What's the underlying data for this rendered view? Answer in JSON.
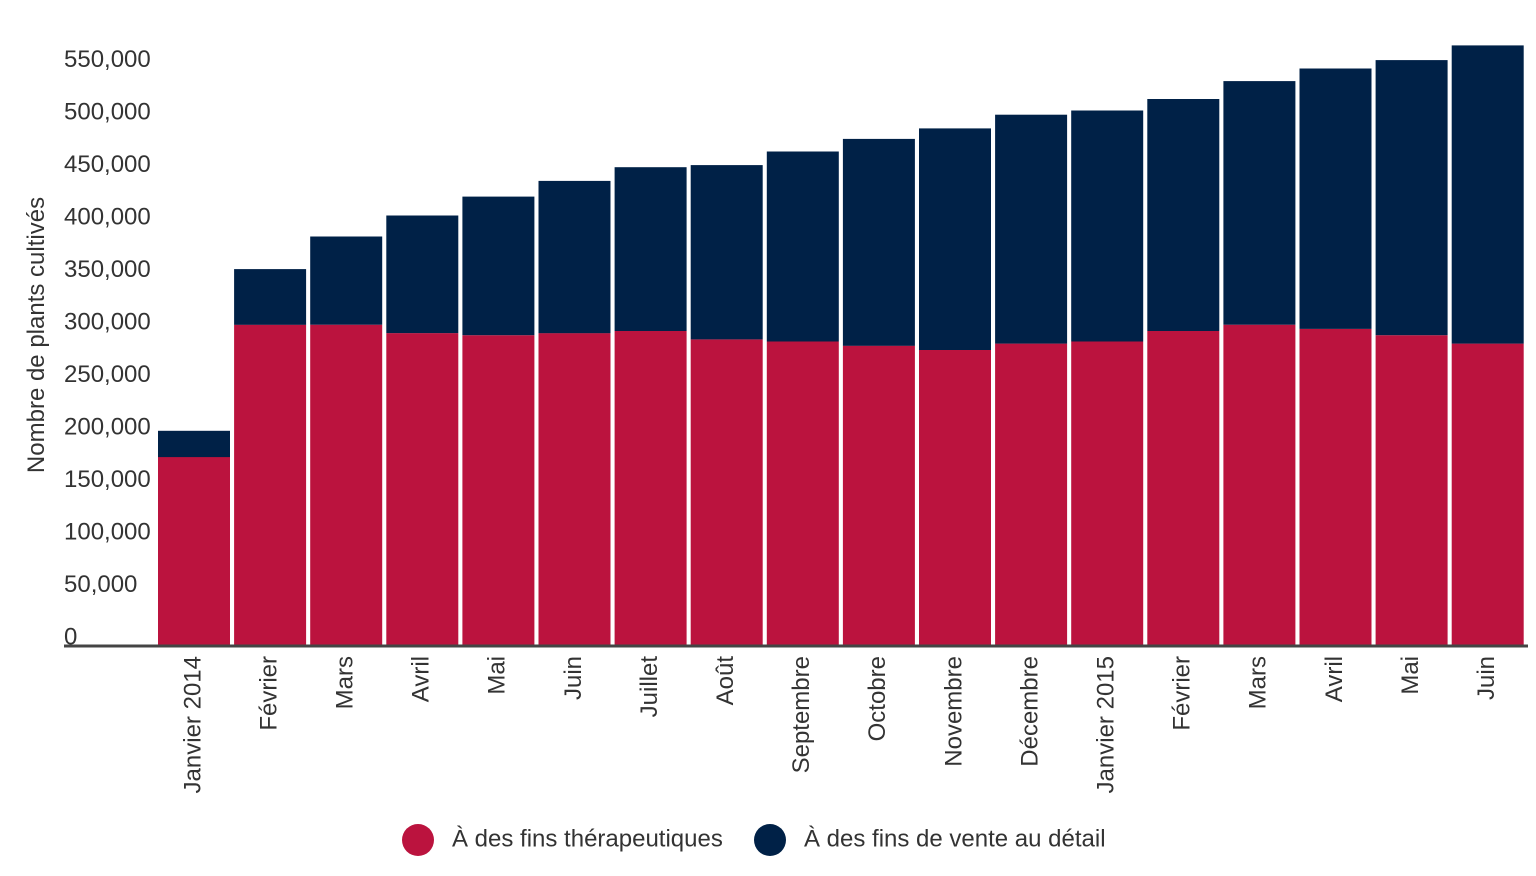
{
  "chart_data": {
    "type": "bar",
    "stacked": true,
    "title": "",
    "xlabel": "",
    "ylabel": "Nombre de plants cultivés",
    "ylim": [
      0,
      570000
    ],
    "y_ticks": [
      0,
      50000,
      100000,
      150000,
      200000,
      250000,
      300000,
      350000,
      400000,
      450000,
      500000,
      550000
    ],
    "y_tick_labels": [
      "0",
      "50,000",
      "100,000",
      "150,000",
      "200,000",
      "250,000",
      "300,000",
      "350,000",
      "400,000",
      "450,000",
      "500,000",
      "550,000"
    ],
    "grid": false,
    "legend_position": "bottom",
    "categories": [
      "Janvier 2014",
      "Février",
      "Mars",
      "Avril",
      "Mai",
      "Juin",
      "Juillet",
      "Août",
      "Septembre",
      "Octobre",
      "Novembre",
      "Décembre",
      "Janvier 2015",
      "Février",
      "Mars",
      "Avril",
      "Mai",
      "Juin"
    ],
    "series": [
      {
        "name": "À des fins thérapeutiques",
        "color": "#bb133e",
        "values": [
          180000,
          306000,
          306000,
          298000,
          296000,
          298000,
          300000,
          292000,
          290000,
          286000,
          282000,
          288000,
          290000,
          300000,
          306000,
          302000,
          296000,
          288000
        ]
      },
      {
        "name": "À des fins de vente au détail",
        "color": "#002147",
        "values": [
          25000,
          53000,
          84000,
          112000,
          132000,
          145000,
          156000,
          166000,
          181000,
          197000,
          211000,
          218000,
          220000,
          221000,
          232000,
          248000,
          262000,
          284000
        ]
      }
    ]
  }
}
